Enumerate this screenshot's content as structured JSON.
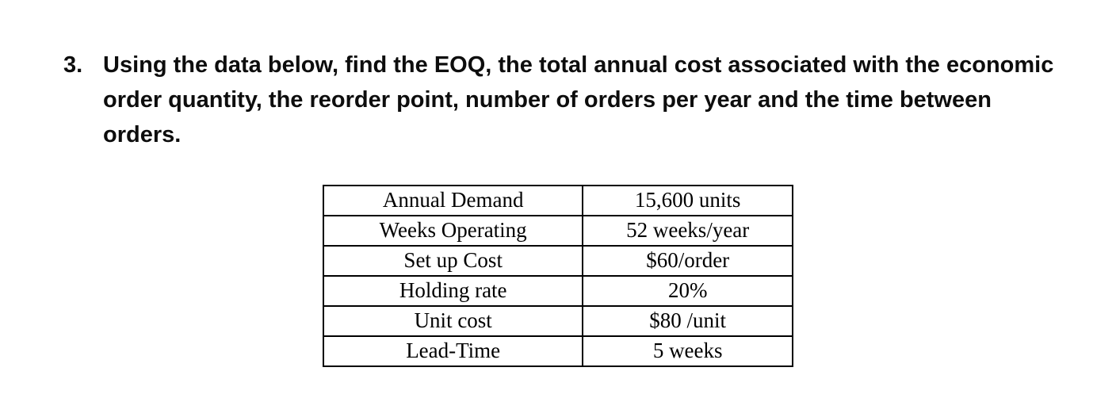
{
  "question": {
    "number": "3.",
    "text": "Using the data below, find the EOQ, the total annual cost associated with the economic order quantity, the reorder point, number of orders per year and the time between orders."
  },
  "table": {
    "rows": [
      {
        "label": "Annual Demand",
        "value": "15,600 units"
      },
      {
        "label": "Weeks Operating",
        "value": "52 weeks/year"
      },
      {
        "label": "Set up Cost",
        "value": "$60/order"
      },
      {
        "label": "Holding rate",
        "value": "20%"
      },
      {
        "label": "Unit cost",
        "value": "$80 /unit"
      },
      {
        "label": "Lead-Time",
        "value": "5 weeks"
      }
    ]
  },
  "colors": {
    "background": "#ffffff",
    "text": "#0d0d0d",
    "table_border": "#000000"
  }
}
